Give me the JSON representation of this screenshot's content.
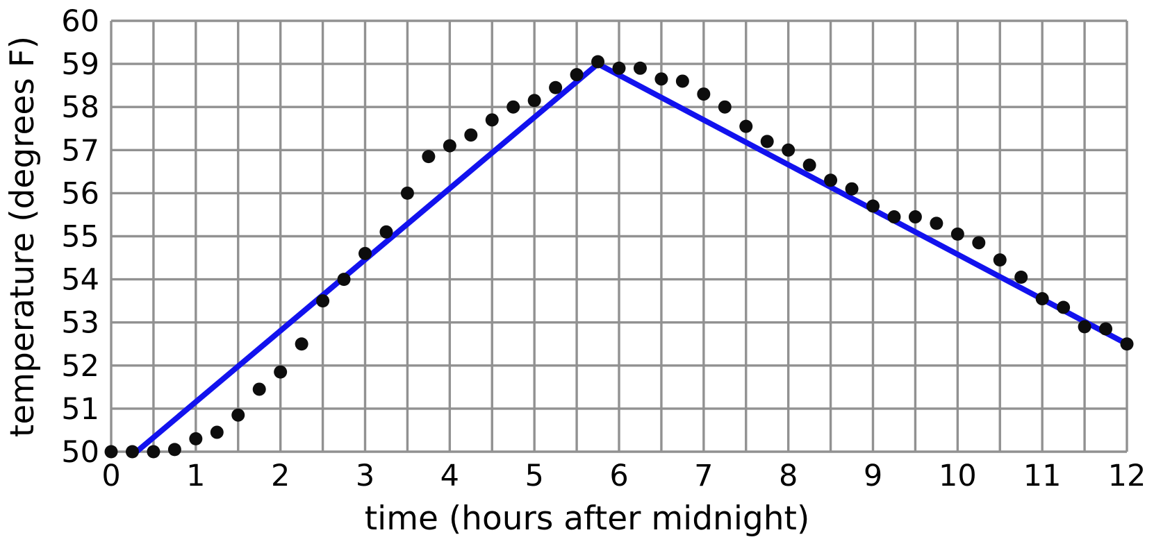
{
  "chart_data": {
    "type": "scatter",
    "title": "",
    "xlabel": "time (hours after midnight)",
    "ylabel": "temperature (degrees F)",
    "xlim": [
      0,
      12
    ],
    "ylim": [
      50,
      60
    ],
    "x_ticks": [
      0,
      1,
      2,
      3,
      4,
      5,
      6,
      7,
      8,
      9,
      10,
      11,
      12
    ],
    "y_ticks": [
      50,
      51,
      52,
      53,
      54,
      55,
      56,
      57,
      58,
      59,
      60
    ],
    "x_grid_step": 0.5,
    "y_grid_step": 1,
    "grid": true,
    "legend": "none",
    "scatter_points": [
      [
        0,
        50
      ],
      [
        0.25,
        50
      ],
      [
        0.5,
        50
      ],
      [
        0.75,
        50.05
      ],
      [
        1,
        50.3
      ],
      [
        1.25,
        50.45
      ],
      [
        1.5,
        50.85
      ],
      [
        1.75,
        51.45
      ],
      [
        2,
        51.85
      ],
      [
        2.25,
        52.5
      ],
      [
        2.5,
        53.5
      ],
      [
        2.75,
        54
      ],
      [
        3,
        54.6
      ],
      [
        3.25,
        55.1
      ],
      [
        3.5,
        56
      ],
      [
        3.75,
        56.85
      ],
      [
        4,
        57.1
      ],
      [
        4.25,
        57.35
      ],
      [
        4.5,
        57.7
      ],
      [
        4.75,
        58
      ],
      [
        5,
        58.15
      ],
      [
        5.25,
        58.45
      ],
      [
        5.5,
        58.75
      ],
      [
        5.75,
        59.05
      ],
      [
        6,
        58.9
      ],
      [
        6.25,
        58.9
      ],
      [
        6.5,
        58.65
      ],
      [
        6.75,
        58.6
      ],
      [
        7,
        58.3
      ],
      [
        7.25,
        58
      ],
      [
        7.5,
        57.55
      ],
      [
        7.75,
        57.2
      ],
      [
        8,
        57
      ],
      [
        8.25,
        56.65
      ],
      [
        8.5,
        56.3
      ],
      [
        8.75,
        56.1
      ],
      [
        9,
        55.7
      ],
      [
        9.25,
        55.45
      ],
      [
        9.5,
        55.45
      ],
      [
        9.75,
        55.3
      ],
      [
        10,
        55.05
      ],
      [
        10.25,
        54.85
      ],
      [
        10.5,
        54.45
      ],
      [
        10.75,
        54.05
      ],
      [
        11,
        53.55
      ],
      [
        11.25,
        53.35
      ],
      [
        11.5,
        52.9
      ],
      [
        11.75,
        52.85
      ],
      [
        12,
        52.5
      ]
    ],
    "model_line": {
      "vertices": [
        [
          0.3,
          50
        ],
        [
          5.75,
          59
        ],
        [
          12,
          52.5
        ]
      ]
    },
    "colors": {
      "point": "#0d0d0d",
      "model_line": "#1212ee",
      "grid": "#919191",
      "text": "#000000"
    }
  }
}
